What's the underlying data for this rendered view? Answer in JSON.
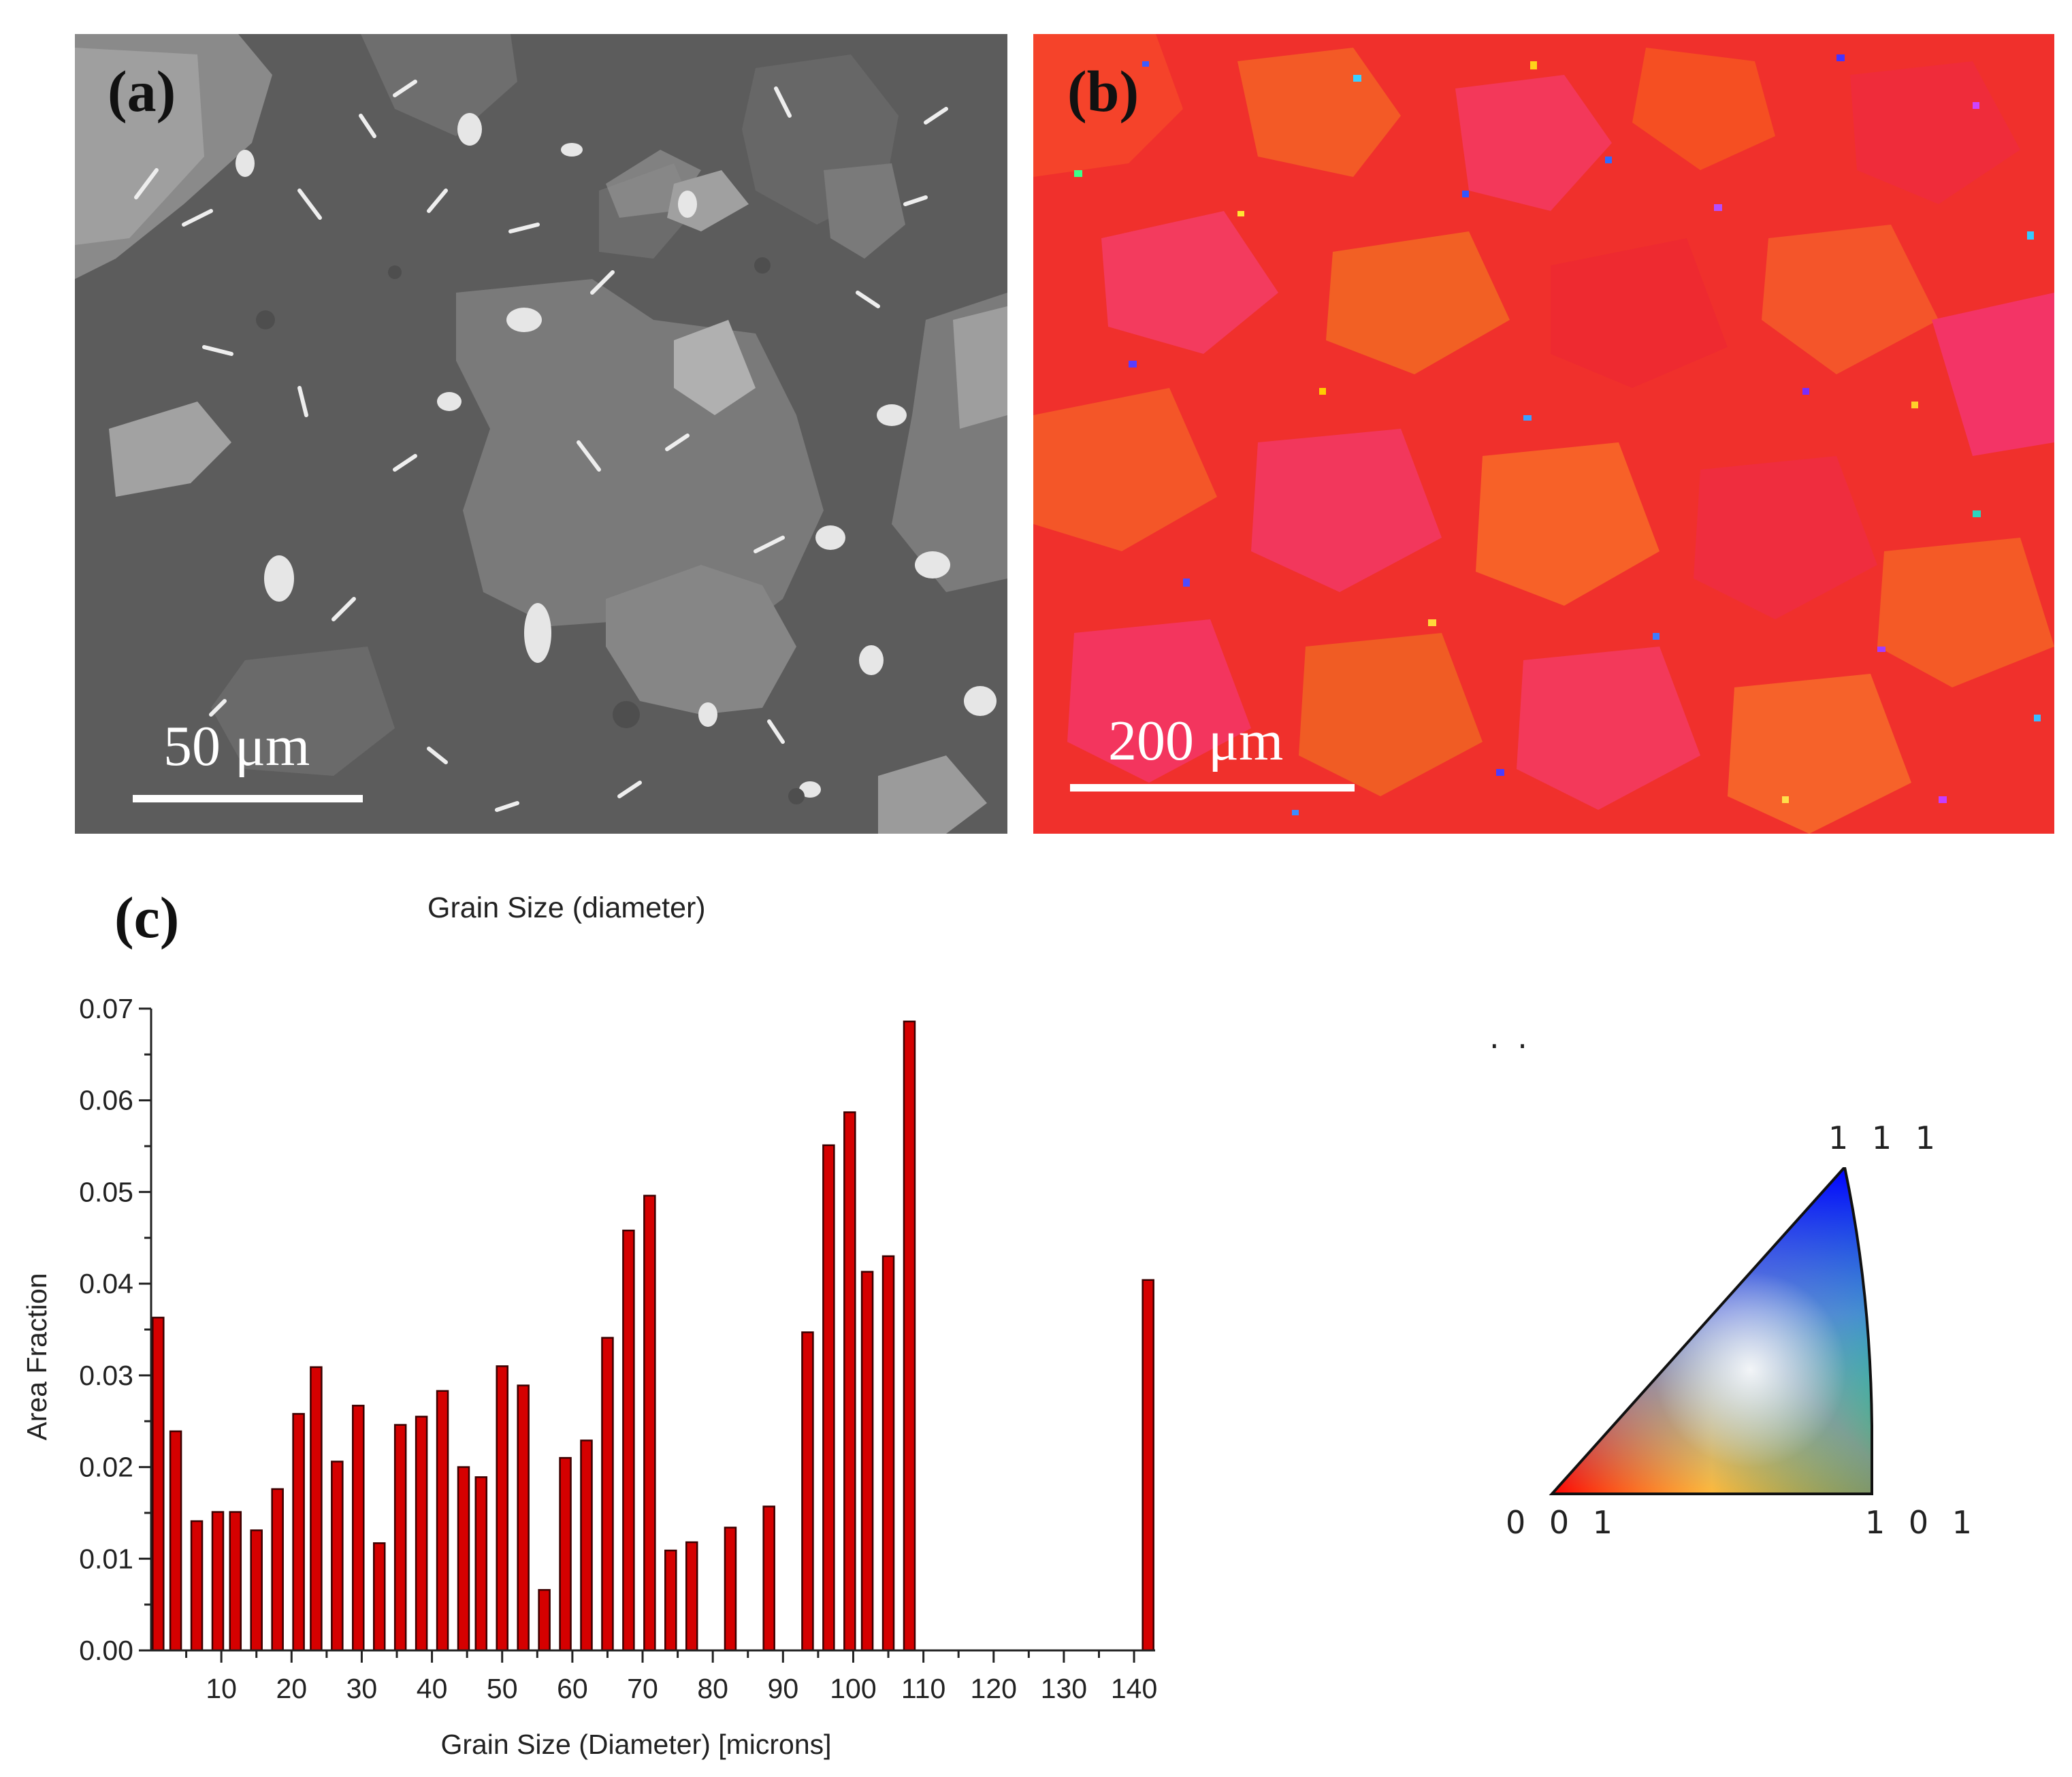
{
  "panels": {
    "a": {
      "label": "(a)",
      "scale_label": "50 μm"
    },
    "b": {
      "label": "(b)",
      "scale_label": "200 μm"
    },
    "c": {
      "label": "(c)"
    }
  },
  "colors": {
    "bar_fill": "#d50000",
    "bar_stroke": "#3a0000",
    "sem_dark": "#5e5e5e",
    "sem_mid": "#7d7d7d",
    "sem_bright": "#bdbdbd",
    "ebsd_red": "#f0302c",
    "ebsd_orange": "#f55a22",
    "ebsd_pink": "#f33b5e"
  },
  "chart_data": {
    "type": "bar",
    "title": "Grain Size (diameter)",
    "xlabel": "Grain Size (Diameter) [microns]",
    "ylabel": "Area Fraction",
    "xlim": [
      0,
      143
    ],
    "ylim": [
      0,
      0.07
    ],
    "xticks": [
      10,
      20,
      30,
      40,
      50,
      60,
      70,
      80,
      90,
      100,
      110,
      120,
      130,
      140
    ],
    "yticks": [
      "0.00",
      "0.01",
      "0.02",
      "0.03",
      "0.04",
      "0.05",
      "0.06",
      "0.07"
    ],
    "x": [
      1,
      3.5,
      6.5,
      9.5,
      12,
      15,
      18,
      21,
      23.5,
      26.5,
      29.5,
      32.5,
      35.5,
      38.5,
      41.5,
      44.5,
      47,
      50,
      53,
      56,
      59,
      62,
      65,
      68,
      71,
      74,
      77,
      82.5,
      88,
      93.5,
      96.5,
      99.5,
      102,
      105,
      108,
      142
    ],
    "values": [
      0.0363,
      0.0239,
      0.0141,
      0.0151,
      0.0151,
      0.0131,
      0.0176,
      0.0258,
      0.0309,
      0.0206,
      0.0267,
      0.0117,
      0.0246,
      0.0255,
      0.0283,
      0.02,
      0.0189,
      0.031,
      0.0289,
      0.0066,
      0.021,
      0.0229,
      0.0341,
      0.0458,
      0.0496,
      0.0109,
      0.0118,
      0.0134,
      0.0157,
      0.0347,
      0.0551,
      0.0587,
      0.0413,
      0.043,
      0.0686,
      0.0404
    ]
  },
  "ipf_legend": {
    "dots": "· ·",
    "vertex_111": "1 1 1",
    "vertex_001": "0 0 1",
    "vertex_101": "1 0 1"
  }
}
